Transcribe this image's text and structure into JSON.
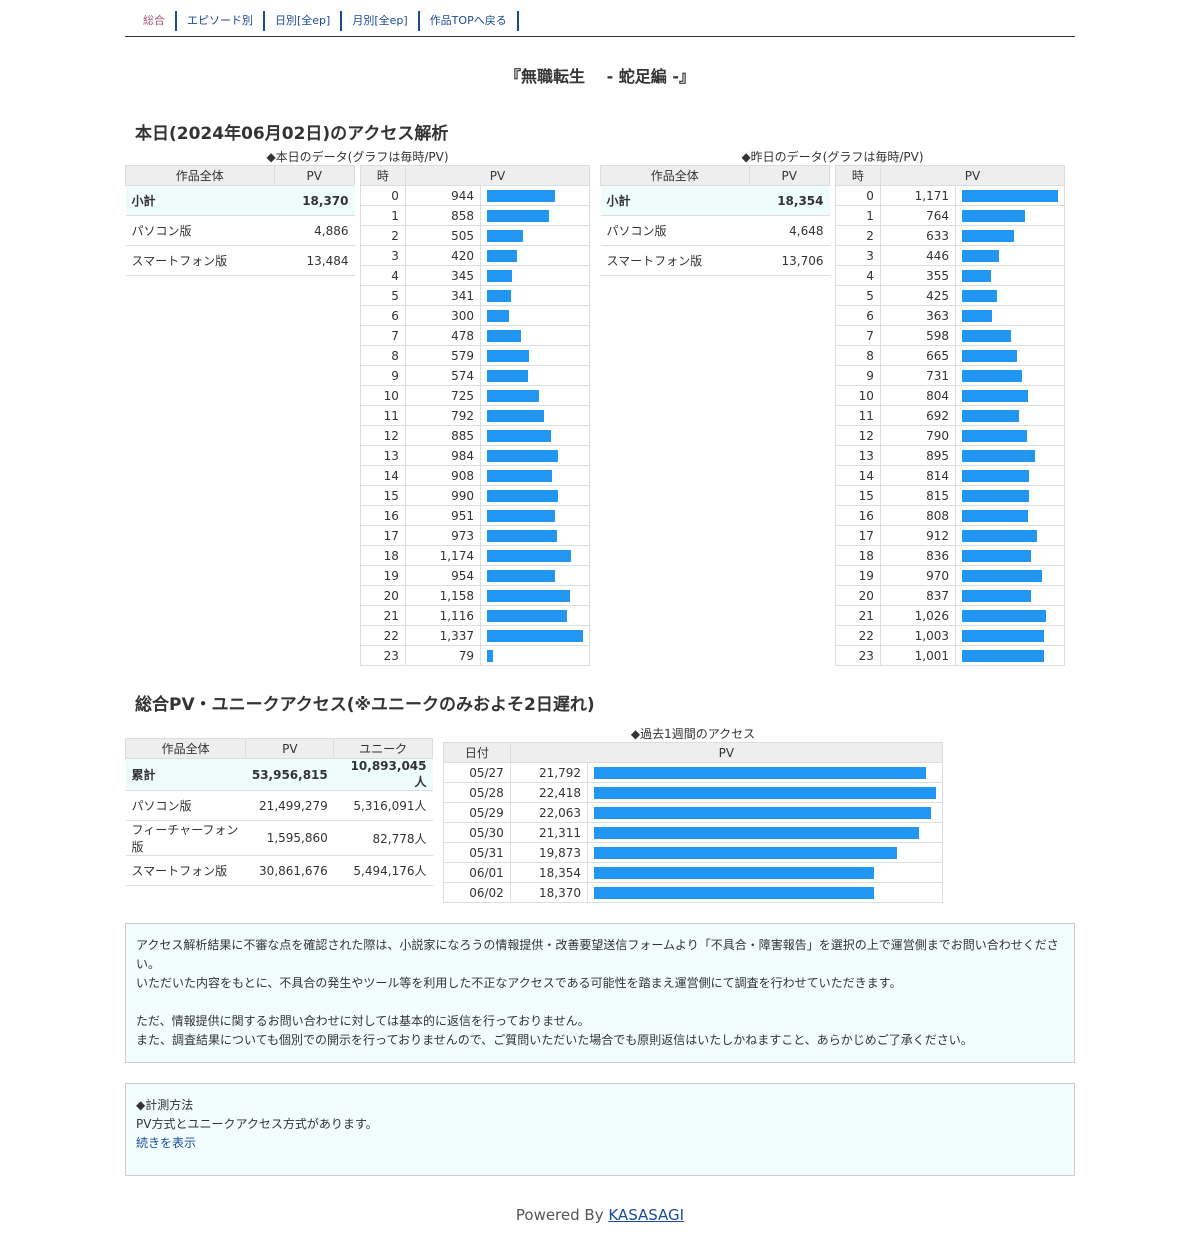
{
  "nav": [
    "総合",
    "エピソード別",
    "日別[全ep]",
    "月別[全ep]",
    "作品TOPへ戻る"
  ],
  "title": "『無職転生　 - 蛇足編 -』",
  "today": {
    "heading": "本日(2024年06月02日)のアクセス解析",
    "today_caption": "◆本日のデータ(グラフは毎時/PV)",
    "yesterday_caption": "◆昨日のデータ(グラフは毎時/PV)",
    "sum_headers": [
      "作品全体",
      "PV"
    ],
    "hour_headers": [
      "時",
      "PV"
    ],
    "today_sum": [
      [
        "小計",
        "18,370"
      ],
      [
        "パソコン版",
        "4,886"
      ],
      [
        "スマートフォン版",
        "13,484"
      ]
    ],
    "yesterday_sum": [
      [
        "小計",
        "18,354"
      ],
      [
        "パソコン版",
        "4,648"
      ],
      [
        "スマートフォン版",
        "13,706"
      ]
    ],
    "today_hours": [
      944,
      858,
      505,
      420,
      345,
      341,
      300,
      478,
      579,
      574,
      725,
      792,
      885,
      984,
      908,
      990,
      951,
      973,
      1174,
      954,
      1158,
      1116,
      1337,
      79
    ],
    "yesterday_hours": [
      1171,
      764,
      633,
      446,
      355,
      425,
      363,
      598,
      665,
      731,
      804,
      692,
      790,
      895,
      814,
      815,
      808,
      912,
      836,
      970,
      837,
      1026,
      1003,
      1001
    ]
  },
  "total": {
    "heading": "総合PV・ユニークアクセス(※ユニークのみおよそ2日遅れ)",
    "headers": [
      "作品全体",
      "PV",
      "ユニーク"
    ],
    "rows": [
      [
        "累計",
        "53,956,815",
        "10,893,045人"
      ],
      [
        "パソコン版",
        "21,499,279",
        "5,316,091人"
      ],
      [
        "フィーチャーフォン版",
        "1,595,860",
        "82,778人"
      ],
      [
        "スマートフォン版",
        "30,861,676",
        "5,494,176人"
      ]
    ],
    "week_caption": "◆過去1週間のアクセス",
    "week_headers": [
      "日付",
      "PV"
    ],
    "week": [
      [
        "05/27",
        21792
      ],
      [
        "05/28",
        22418
      ],
      [
        "05/29",
        22063
      ],
      [
        "05/30",
        21311
      ],
      [
        "05/31",
        19873
      ],
      [
        "06/01",
        18354
      ],
      [
        "06/02",
        18370
      ]
    ]
  },
  "notice": [
    "アクセス解析結果に不審な点を確認された際は、小説家になろうの情報提供・改善要望送信フォームより「不具合・障害報告」を選択の上で運営側までお問い合わせください。",
    "いただいた内容をもとに、不具合の発生やツール等を利用した不正なアクセスである可能性を踏まえ運営側にて調査を行わせていただきます。",
    "",
    "ただ、情報提供に関するお問い合わせに対しては基本的に返信を行っておりません。",
    "また、調査結果についても個別での開示を行っておりませんので、ご質問いただいた場合でも原則返信はいたしかねますこと、あらかじめご了承ください。"
  ],
  "method": {
    "title": "◆計測方法",
    "text": "PV方式とユニークアクセス方式があります。",
    "more": "続きを表示"
  },
  "footer": {
    "prefix": "Powered By ",
    "link": "KASASAGI"
  },
  "colors": {
    "bar": "#2196f3",
    "highlight": "#effcfc"
  }
}
